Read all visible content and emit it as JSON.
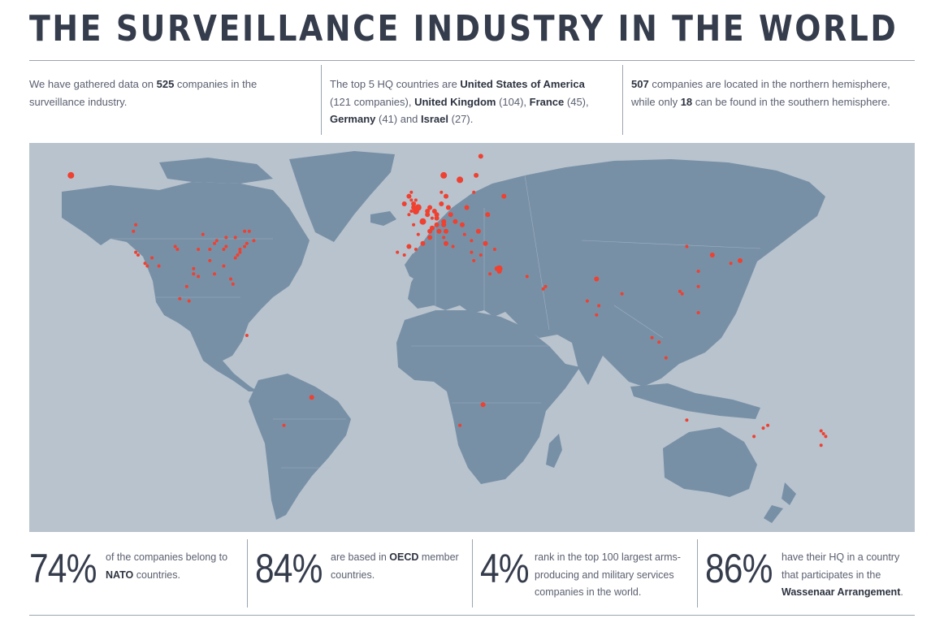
{
  "title": "THE SURVEILLANCE INDUSTRY IN THE WORLD",
  "intro": {
    "col1": {
      "pre": "We have gathered data on ",
      "num": "525",
      "post": " companies in the surveillance industry."
    },
    "col2": {
      "pre": "The top 5 HQ countries are ",
      "c1": "United States of America",
      "n1": " (121 companies), ",
      "c2": "United Kingdom",
      "n2": " (104), ",
      "c3": "France",
      "n3": " (45), ",
      "c4": "Germany",
      "n4": " (41) and ",
      "c5": "Israel",
      "n5": " (27)."
    },
    "col3": {
      "num1": "507",
      "mid": " companies are located in the northern hemisphere, while only ",
      "num2": "18",
      "post": " can be found in the southern hemisphere."
    }
  },
  "map": {
    "ocean_color": "#b8c3ce",
    "land_color": "#7890a6",
    "border_color": "#b5c3d0",
    "marker_color": "#ef4030",
    "markers": [
      [
        60,
        -150,
        4
      ],
      [
        47,
        -122,
        2
      ],
      [
        45,
        -123,
        2
      ],
      [
        38,
        -122,
        2
      ],
      [
        37,
        -121,
        2
      ],
      [
        34,
        -118,
        2
      ],
      [
        33,
        -117,
        2
      ],
      [
        36,
        -115,
        2
      ],
      [
        40,
        -105,
        2
      ],
      [
        39,
        -104,
        2
      ],
      [
        33,
        -112,
        2
      ],
      [
        30,
        -97,
        2
      ],
      [
        32,
        -97,
        2
      ],
      [
        29,
        -95,
        2
      ],
      [
        35,
        -90,
        2
      ],
      [
        39,
        -90,
        2
      ],
      [
        41,
        -88,
        2
      ],
      [
        42,
        -87,
        2
      ],
      [
        43,
        -83,
        2
      ],
      [
        40,
        -83,
        2
      ],
      [
        39,
        -84,
        2
      ],
      [
        43,
        -79,
        2
      ],
      [
        45,
        -75,
        2
      ],
      [
        45,
        -73,
        2
      ],
      [
        42,
        -71,
        2
      ],
      [
        41,
        -74,
        2
      ],
      [
        40,
        -75,
        2
      ],
      [
        39,
        -77,
        2
      ],
      [
        38,
        -77,
        2
      ],
      [
        37,
        -78,
        2
      ],
      [
        36,
        -79,
        2
      ],
      [
        33,
        -84,
        2
      ],
      [
        28,
        -81,
        2
      ],
      [
        26,
        -80,
        2
      ],
      [
        30,
        -88,
        2
      ],
      [
        44,
        -93,
        2
      ],
      [
        39,
        -95,
        2
      ],
      [
        25,
        -100,
        2
      ],
      [
        20,
        -103,
        2
      ],
      [
        19,
        -99,
        2
      ],
      [
        4,
        -74,
        2
      ],
      [
        -23,
        -46,
        3
      ],
      [
        -34,
        -58,
        2
      ],
      [
        60,
        11,
        4
      ],
      [
        59,
        18,
        4
      ],
      [
        60,
        25,
        3
      ],
      [
        55,
        37,
        3
      ],
      [
        56,
        24,
        2
      ],
      [
        64,
        27,
        3
      ],
      [
        52,
        21,
        3
      ],
      [
        50,
        14,
        3
      ],
      [
        48,
        16,
        3
      ],
      [
        47,
        19,
        3
      ],
      [
        45,
        26,
        3
      ],
      [
        44,
        20,
        2
      ],
      [
        42,
        23,
        2
      ],
      [
        41,
        29,
        3
      ],
      [
        38,
        23,
        2
      ],
      [
        41,
        12,
        3
      ],
      [
        45,
        9,
        3
      ],
      [
        45,
        12,
        3
      ],
      [
        43,
        11,
        2
      ],
      [
        40,
        15,
        2
      ],
      [
        46,
        6,
        3
      ],
      [
        47,
        8,
        3
      ],
      [
        47,
        11,
        3
      ],
      [
        48,
        11,
        3
      ],
      [
        49,
        8,
        3
      ],
      [
        50,
        8,
        3
      ],
      [
        51,
        7,
        3
      ],
      [
        52,
        13,
        3
      ],
      [
        53,
        10,
        3
      ],
      [
        52,
        5,
        3
      ],
      [
        51,
        4,
        3
      ],
      [
        50,
        4,
        3
      ],
      [
        49,
        6,
        2
      ],
      [
        48,
        2,
        4
      ],
      [
        45,
        5,
        3
      ],
      [
        43,
        5,
        3
      ],
      [
        44,
        0,
        2
      ],
      [
        47,
        -2,
        2
      ],
      [
        52,
        0,
        4
      ],
      [
        51,
        -1,
        4
      ],
      [
        52,
        -2,
        3
      ],
      [
        53,
        -2,
        3
      ],
      [
        54,
        -3,
        2
      ],
      [
        55,
        -4,
        3
      ],
      [
        56,
        -3,
        2
      ],
      [
        53,
        -6,
        3
      ],
      [
        51,
        -3,
        2
      ],
      [
        50,
        -4,
        2
      ],
      [
        54,
        -1,
        2
      ],
      [
        40,
        -4,
        3
      ],
      [
        41,
        2,
        3
      ],
      [
        38,
        -9,
        2
      ],
      [
        37,
        -6,
        2
      ],
      [
        39,
        -1,
        2
      ],
      [
        55,
        12,
        3
      ],
      [
        56,
        10,
        2
      ],
      [
        50,
        30,
        3
      ],
      [
        37,
        27,
        2
      ],
      [
        39,
        33,
        2
      ],
      [
        35,
        24,
        2
      ],
      [
        32,
        35,
        4
      ],
      [
        32,
        34,
        3
      ],
      [
        31,
        35,
        3
      ],
      [
        30,
        31,
        2
      ],
      [
        25,
        55,
        2
      ],
      [
        24,
        54,
        2
      ],
      [
        29,
        47,
        2
      ],
      [
        28,
        77,
        3
      ],
      [
        19,
        73,
        2
      ],
      [
        13,
        77,
        2
      ],
      [
        17,
        78,
        2
      ],
      [
        22,
        88,
        2
      ],
      [
        23,
        113,
        2
      ],
      [
        22,
        114,
        2
      ],
      [
        31,
        121,
        2
      ],
      [
        40,
        116,
        2
      ],
      [
        37,
        127,
        3
      ],
      [
        35,
        139,
        3
      ],
      [
        34,
        135,
        2
      ],
      [
        25,
        121,
        2
      ],
      [
        14,
        121,
        2
      ],
      [
        1,
        104,
        2
      ],
      [
        3,
        101,
        2
      ],
      [
        -6,
        107,
        2
      ],
      [
        -26,
        28,
        3
      ],
      [
        -34,
        18,
        2
      ],
      [
        -32,
        116,
        2
      ],
      [
        -34,
        151,
        2
      ],
      [
        -38,
        145,
        2
      ],
      [
        -35,
        149,
        2
      ],
      [
        -36,
        174,
        2
      ],
      [
        -41,
        174,
        2
      ],
      [
        -37,
        175,
        2
      ],
      [
        -38,
        176,
        2
      ]
    ]
  },
  "stats": [
    {
      "big": "74%",
      "pre": "of the companies belong to ",
      "bold": "NATO",
      "post": " countries."
    },
    {
      "big": "84%",
      "pre": "are based in ",
      "bold": "OECD",
      "post": " member countries."
    },
    {
      "big": "4%",
      "pre": "rank in the top 100 largest arms-producing and military services companies in the world.",
      "bold": "",
      "post": ""
    },
    {
      "big": "86%",
      "pre": "have their HQ in a country that participates in the ",
      "bold": "Wassenaar Arrangement",
      "post": "."
    }
  ]
}
